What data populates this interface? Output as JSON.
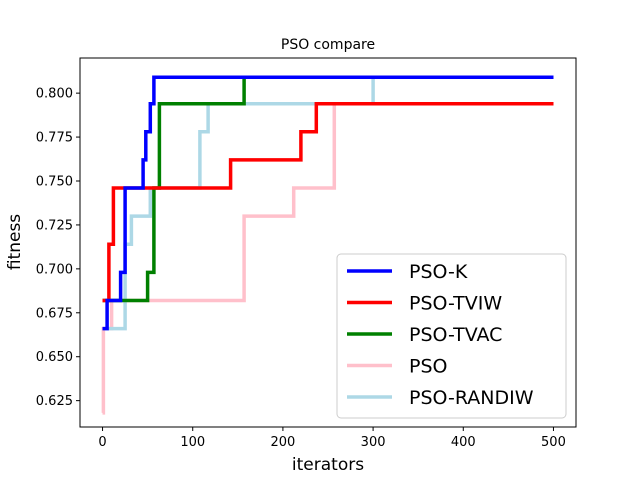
{
  "chart_data": {
    "type": "line",
    "title": "PSO compare",
    "xlabel": "iterators",
    "ylabel": "fitness",
    "xlim": [
      -25,
      525
    ],
    "ylim": [
      0.61,
      0.82
    ],
    "xticks": [
      0,
      100,
      200,
      300,
      400,
      500
    ],
    "yticks": [
      0.625,
      0.65,
      0.675,
      0.7,
      0.725,
      0.75,
      0.775,
      0.8
    ],
    "ytick_labels": [
      "0.625",
      "0.650",
      "0.675",
      "0.700",
      "0.725",
      "0.750",
      "0.775",
      "0.800"
    ],
    "xtick_labels": [
      "0",
      "100",
      "200",
      "300",
      "400",
      "500"
    ],
    "legend_position": "lower-right",
    "grid": false,
    "series": [
      {
        "name": "PSO-K",
        "color": "#0000ff",
        "points": [
          [
            0,
            0.666
          ],
          [
            5,
            0.666
          ],
          [
            5,
            0.682
          ],
          [
            20,
            0.682
          ],
          [
            20,
            0.698
          ],
          [
            25,
            0.698
          ],
          [
            25,
            0.746
          ],
          [
            45,
            0.746
          ],
          [
            45,
            0.762
          ],
          [
            48,
            0.762
          ],
          [
            48,
            0.778
          ],
          [
            53,
            0.778
          ],
          [
            53,
            0.794
          ],
          [
            57,
            0.794
          ],
          [
            57,
            0.809
          ],
          [
            500,
            0.809
          ]
        ]
      },
      {
        "name": "PSO-TVIW",
        "color": "#ff0000",
        "points": [
          [
            0,
            0.682
          ],
          [
            7,
            0.682
          ],
          [
            7,
            0.714
          ],
          [
            12,
            0.714
          ],
          [
            12,
            0.746
          ],
          [
            142,
            0.746
          ],
          [
            142,
            0.762
          ],
          [
            220,
            0.762
          ],
          [
            220,
            0.778
          ],
          [
            237,
            0.778
          ],
          [
            237,
            0.794
          ],
          [
            500,
            0.794
          ]
        ]
      },
      {
        "name": "PSO-TVAC",
        "color": "#008000",
        "points": [
          [
            0,
            0.682
          ],
          [
            50,
            0.682
          ],
          [
            50,
            0.698
          ],
          [
            57,
            0.698
          ],
          [
            57,
            0.746
          ],
          [
            63,
            0.746
          ],
          [
            63,
            0.794
          ],
          [
            157,
            0.794
          ],
          [
            157,
            0.809
          ],
          [
            500,
            0.809
          ]
        ]
      },
      {
        "name": "PSO",
        "color": "#ffc0cb",
        "points": [
          [
            0,
            0.618
          ],
          [
            1,
            0.618
          ],
          [
            1,
            0.666
          ],
          [
            10,
            0.666
          ],
          [
            10,
            0.682
          ],
          [
            157,
            0.682
          ],
          [
            157,
            0.73
          ],
          [
            212,
            0.73
          ],
          [
            212,
            0.746
          ],
          [
            257,
            0.746
          ],
          [
            257,
            0.794
          ],
          [
            500,
            0.794
          ]
        ]
      },
      {
        "name": "PSO-RANDIW",
        "color": "#add8e6",
        "points": [
          [
            0,
            0.666
          ],
          [
            25,
            0.666
          ],
          [
            25,
            0.714
          ],
          [
            32,
            0.714
          ],
          [
            32,
            0.73
          ],
          [
            53,
            0.73
          ],
          [
            53,
            0.746
          ],
          [
            108,
            0.746
          ],
          [
            108,
            0.778
          ],
          [
            117,
            0.778
          ],
          [
            117,
            0.794
          ],
          [
            300,
            0.794
          ],
          [
            300,
            0.809
          ],
          [
            500,
            0.809
          ]
        ]
      }
    ]
  }
}
